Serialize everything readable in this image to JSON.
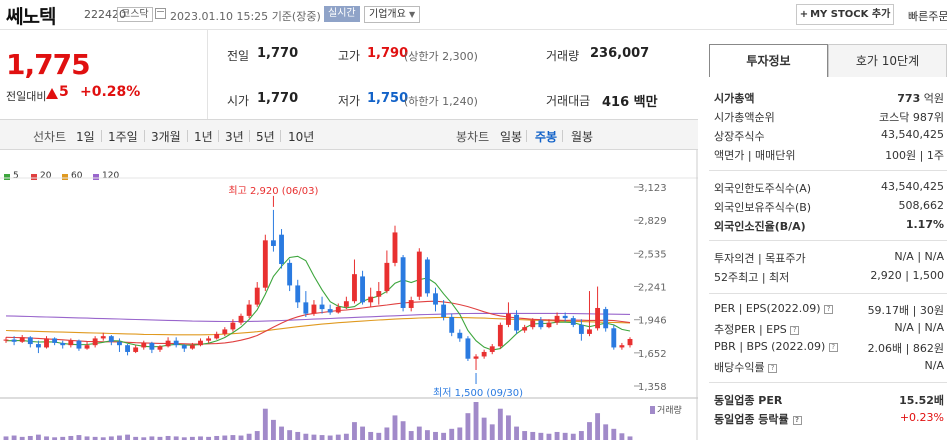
{
  "header": {
    "name": "쎄노텍",
    "code": "222420",
    "market": "코스닥",
    "date": "2023.01.10 15:25",
    "date_basis": "기준(장중)",
    "realtime": "실시간",
    "corp_info": "기업개요",
    "mystock": "MY STOCK 추가",
    "quick": "빠른주문"
  },
  "quote": {
    "price": "1,775",
    "change_label": "전일대비",
    "change": "5",
    "change_pct": "+0.28%",
    "prev_label": "전일",
    "prev": "1,770",
    "high_label": "고가",
    "high": "1,790",
    "upper_label": "(상한가 2,300)",
    "volume_label": "거래량",
    "volume": "236,007",
    "open_label": "시가",
    "open": "1,770",
    "low_label": "저가",
    "low": "1,750",
    "lower_label": "(하한가 1,240)",
    "amount_label": "거래대금",
    "amount": "416",
    "amount_unit": "백만"
  },
  "tabs": {
    "line_label": "선차트",
    "line": [
      "1일",
      "1주일",
      "3개월",
      "1년",
      "3년",
      "5년",
      "10년"
    ],
    "candle_label": "봉차트",
    "candle": [
      "일봉",
      "주봉",
      "월봉"
    ],
    "active_candle": "주봉"
  },
  "chart_data": {
    "type": "candlestick",
    "legend": [
      "5",
      "20",
      "60",
      "120"
    ],
    "ma_colors": [
      "#3da63d",
      "#e04040",
      "#e09a20",
      "#9966cc"
    ],
    "y_ticks": [
      3123,
      2829,
      2535,
      2241,
      1946,
      1652,
      1358
    ],
    "ylim": [
      1358,
      3123
    ],
    "high_annotation": "최고 2,920 (06/03)",
    "low_annotation": "최저 1,500 (09/30)",
    "volume_label": "거래량",
    "candles": [
      [
        1760,
        1770,
        1740,
        1790
      ],
      [
        1770,
        1750,
        1720,
        1800
      ],
      [
        1750,
        1790,
        1740,
        1810
      ],
      [
        1790,
        1730,
        1700,
        1800
      ],
      [
        1730,
        1700,
        1650,
        1760
      ],
      [
        1700,
        1780,
        1690,
        1800
      ],
      [
        1780,
        1740,
        1720,
        1790
      ],
      [
        1740,
        1720,
        1690,
        1760
      ],
      [
        1720,
        1760,
        1700,
        1780
      ],
      [
        1760,
        1690,
        1670,
        1770
      ],
      [
        1690,
        1720,
        1680,
        1750
      ],
      [
        1720,
        1780,
        1700,
        1800
      ],
      [
        1780,
        1800,
        1760,
        1830
      ],
      [
        1800,
        1750,
        1720,
        1810
      ],
      [
        1750,
        1720,
        1660,
        1780
      ],
      [
        1720,
        1660,
        1630,
        1730
      ],
      [
        1660,
        1700,
        1650,
        1720
      ],
      [
        1700,
        1740,
        1680,
        1760
      ],
      [
        1740,
        1680,
        1650,
        1750
      ],
      [
        1680,
        1710,
        1660,
        1720
      ],
      [
        1710,
        1760,
        1700,
        1790
      ],
      [
        1760,
        1720,
        1700,
        1790
      ],
      [
        1720,
        1690,
        1660,
        1730
      ],
      [
        1690,
        1720,
        1680,
        1740
      ],
      [
        1720,
        1760,
        1710,
        1780
      ],
      [
        1760,
        1780,
        1740,
        1800
      ],
      [
        1780,
        1820,
        1770,
        1840
      ],
      [
        1820,
        1860,
        1800,
        1880
      ],
      [
        1860,
        1920,
        1840,
        1950
      ],
      [
        1920,
        1980,
        1900,
        2000
      ],
      [
        1980,
        2080,
        1960,
        2120
      ],
      [
        2080,
        2230,
        2060,
        2280
      ],
      [
        2230,
        2650,
        2200,
        2700
      ],
      [
        2650,
        2600,
        2550,
        2920
      ],
      [
        2700,
        2440,
        2400,
        2750
      ],
      [
        2450,
        2250,
        2200,
        2480
      ],
      [
        2250,
        2100,
        2050,
        2300
      ],
      [
        2100,
        2000,
        1970,
        2200
      ],
      [
        2000,
        2080,
        1980,
        2120
      ],
      [
        2080,
        2040,
        2000,
        2150
      ],
      [
        2040,
        2010,
        1990,
        2080
      ],
      [
        2010,
        2060,
        2000,
        2090
      ],
      [
        2060,
        2110,
        2040,
        2150
      ],
      [
        2110,
        2350,
        2090,
        2480
      ],
      [
        2330,
        2100,
        2080,
        2380
      ],
      [
        2100,
        2150,
        2060,
        2230
      ],
      [
        2150,
        2200,
        2080,
        2280
      ],
      [
        2200,
        2450,
        2180,
        2560
      ],
      [
        2450,
        2720,
        2420,
        2780
      ],
      [
        2500,
        2050,
        2020,
        2520
      ],
      [
        2050,
        2120,
        2020,
        2150
      ],
      [
        2150,
        2550,
        2120,
        2580
      ],
      [
        2480,
        2180,
        2150,
        2500
      ],
      [
        2180,
        2080,
        2020,
        2230
      ],
      [
        2080,
        1970,
        1940,
        2120
      ],
      [
        1970,
        1830,
        1800,
        2000
      ],
      [
        1830,
        1780,
        1750,
        1860
      ],
      [
        1780,
        1600,
        1580,
        1800
      ],
      [
        1600,
        1620,
        1500,
        1640
      ],
      [
        1620,
        1660,
        1600,
        1680
      ],
      [
        1660,
        1710,
        1640,
        1730
      ],
      [
        1710,
        1900,
        1690,
        1920
      ],
      [
        1900,
        2000,
        1880,
        2100
      ],
      [
        1990,
        1850,
        1820,
        2030
      ],
      [
        1850,
        1880,
        1830,
        1900
      ],
      [
        1880,
        1940,
        1860,
        1960
      ],
      [
        1940,
        1880,
        1860,
        1970
      ],
      [
        1880,
        1920,
        1870,
        1950
      ],
      [
        1920,
        1980,
        1900,
        2010
      ],
      [
        1980,
        1960,
        1930,
        2010
      ],
      [
        1960,
        1900,
        1880,
        1980
      ],
      [
        1900,
        1820,
        1760,
        1950
      ],
      [
        1820,
        1860,
        1800,
        2200
      ],
      [
        1870,
        2050,
        1850,
        2240
      ],
      [
        2040,
        1870,
        1840,
        2060
      ],
      [
        1870,
        1700,
        1680,
        1900
      ],
      [
        1700,
        1720,
        1680,
        1740
      ],
      [
        1720,
        1775,
        1700,
        1790
      ]
    ],
    "ma5": [
      1760,
      1760,
      1762,
      1754,
      1748,
      1750,
      1748,
      1736,
      1728,
      1724,
      1726,
      1734,
      1746,
      1760,
      1758,
      1738,
      1722,
      1710,
      1706,
      1708,
      1720,
      1728,
      1722,
      1720,
      1726,
      1738,
      1758,
      1788,
      1832,
      1880,
      1948,
      2034,
      2172,
      2330,
      2420,
      2498,
      2508,
      2470,
      2334,
      2210,
      2106,
      2066,
      2052,
      2062,
      2110,
      2136,
      2156,
      2198,
      2270,
      2298,
      2276,
      2302,
      2316,
      2268,
      2176,
      2092,
      1994,
      1850,
      1760,
      1702,
      1676,
      1690,
      1752,
      1822,
      1872,
      1908,
      1912,
      1914,
      1924,
      1924,
      1920,
      1900,
      1884,
      1900,
      1916,
      1900,
      1860,
      1846
    ],
    "ma20": [
      1790,
      1788,
      1786,
      1784,
      1780,
      1776,
      1772,
      1768,
      1762,
      1758,
      1754,
      1752,
      1750,
      1750,
      1748,
      1746,
      1742,
      1740,
      1738,
      1736,
      1736,
      1734,
      1732,
      1730,
      1730,
      1732,
      1734,
      1740,
      1750,
      1764,
      1782,
      1806,
      1842,
      1880,
      1916,
      1948,
      1972,
      1990,
      2002,
      2010,
      2020,
      2028,
      2032,
      2040,
      2050,
      2060,
      2068,
      2076,
      2086,
      2094,
      2100,
      2104,
      2108,
      2110,
      2104,
      2094,
      2080,
      2062,
      2040,
      2016,
      1996,
      1980,
      1970,
      1962,
      1956,
      1950,
      1946,
      1944,
      1942,
      1940,
      1942,
      1942,
      1940,
      1940,
      1942,
      1938,
      1930,
      1920
    ],
    "ma60": [
      1850,
      1848,
      1846,
      1844,
      1842,
      1840,
      1838,
      1836,
      1834,
      1832,
      1830,
      1828,
      1826,
      1824,
      1822,
      1820,
      1818,
      1816,
      1815,
      1814,
      1813,
      1812,
      1812,
      1812,
      1812,
      1813,
      1815,
      1818,
      1822,
      1827,
      1833,
      1840,
      1848,
      1857,
      1866,
      1875,
      1884,
      1892,
      1900,
      1907,
      1913,
      1919,
      1924,
      1929,
      1934,
      1939,
      1943,
      1947,
      1951,
      1955,
      1958,
      1961,
      1963,
      1965,
      1966,
      1966,
      1965,
      1964,
      1962,
      1960,
      1957,
      1954,
      1951,
      1948,
      1945,
      1942,
      1939,
      1937,
      1935,
      1933,
      1931,
      1929,
      1927,
      1925,
      1923,
      1921,
      1919,
      1917
    ],
    "ma120": [
      1980,
      1978,
      1976,
      1974,
      1972,
      1970,
      1968,
      1966,
      1964,
      1962,
      1960,
      1958,
      1956,
      1954,
      1952,
      1950,
      1948,
      1946,
      1944,
      1942,
      1940,
      1938,
      1936,
      1934,
      1933,
      1932,
      1931,
      1930,
      1930,
      1930,
      1931,
      1932,
      1934,
      1936,
      1939,
      1942,
      1945,
      1948,
      1951,
      1954,
      1957,
      1960,
      1963,
      1966,
      1969,
      1972,
      1975,
      1978,
      1981,
      1984,
      1987,
      1990,
      1992,
      1994,
      1996,
      1998,
      2000,
      2001,
      2002,
      2002,
      2002,
      2002,
      2002,
      2002,
      2002,
      2002,
      2002,
      2002,
      2002,
      2001,
      2000,
      1999,
      1998,
      1997,
      1996,
      1995,
      1994,
      1993
    ],
    "volume": [
      8,
      10,
      7,
      9,
      12,
      8,
      6,
      7,
      9,
      11,
      8,
      7,
      6,
      8,
      10,
      12,
      7,
      6,
      8,
      7,
      9,
      8,
      6,
      7,
      8,
      7,
      9,
      10,
      11,
      10,
      14,
      20,
      70,
      45,
      30,
      22,
      18,
      14,
      12,
      11,
      10,
      12,
      14,
      40,
      30,
      18,
      16,
      28,
      55,
      42,
      20,
      30,
      22,
      18,
      16,
      25,
      28,
      60,
      85,
      50,
      35,
      70,
      55,
      30,
      20,
      18,
      16,
      14,
      18,
      16,
      14,
      20,
      40,
      60,
      35,
      25,
      15,
      8
    ]
  },
  "panel": {
    "tab_info": "투자정보",
    "tab_hoga": "호가 10단계",
    "mcap_label": "시가총액",
    "mcap_value": "773",
    "mcap_unit": "억원",
    "mcap_rank_label": "시가총액순위",
    "mcap_rank_value": "코스닥 987위",
    "shares_label": "상장주식수",
    "shares_value": "43,540,425",
    "par_label": "액면가 | 매매단위",
    "par_value": "100원 | 1주",
    "foreign_limit_label": "외국인한도주식수(A)",
    "foreign_limit_value": "43,540,425",
    "foreign_hold_label": "외국인보유주식수(B)",
    "foreign_hold_value": "508,662",
    "foreign_rate_label": "외국인소진율(B/A)",
    "foreign_rate_value": "1.17%",
    "opinion_label": "투자의견 | 목표주가",
    "opinion_value": "N/A | N/A",
    "w52_label": "52주최고 | 최저",
    "w52_value": "2,920 | 1,500",
    "per_label": "PER | EPS(2022.09)",
    "per_value": "59.17배 | 30원",
    "est_label": "추정PER | EPS",
    "est_value": "N/A | N/A",
    "pbr_label": "PBR | BPS (2022.09)",
    "pbr_value": "2.06배 | 862원",
    "div_label": "배당수익률",
    "div_value": "N/A",
    "ind_per_label": "동일업종 PER",
    "ind_per_value": "15.52배",
    "ind_chg_label": "동일업종 등락률",
    "ind_chg_value": "+0.23%"
  }
}
